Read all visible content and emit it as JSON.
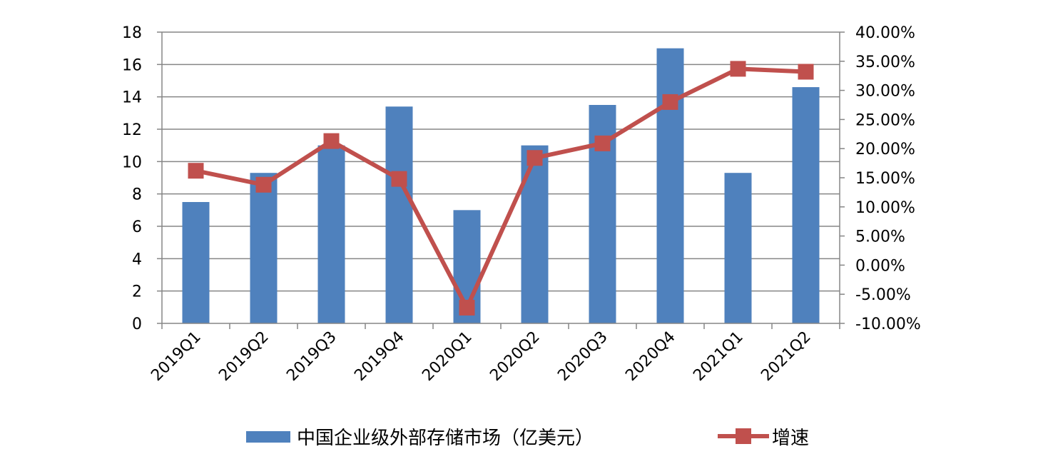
{
  "chart_data": {
    "type": "bar",
    "categories": [
      "2019Q1",
      "2019Q2",
      "2019Q3",
      "2019Q4",
      "2020Q1",
      "2020Q2",
      "2020Q3",
      "2020Q4",
      "2021Q1",
      "2021Q2"
    ],
    "series": [
      {
        "name": "中国企业级外部存储市场（亿美元）",
        "type": "bar",
        "axis": "left",
        "color": "#4F81BD",
        "values": [
          7.5,
          9.3,
          11.0,
          13.4,
          7.0,
          11.0,
          13.5,
          17.0,
          9.3,
          14.6
        ]
      },
      {
        "name": "增速",
        "type": "line",
        "axis": "right",
        "color": "#C0504D",
        "marker": "square",
        "values": [
          16.2,
          13.8,
          21.3,
          14.8,
          -7.3,
          18.4,
          20.9,
          28.0,
          33.7,
          33.2
        ]
      }
    ],
    "y_left": {
      "ylim": [
        0,
        18
      ],
      "ticks": [
        "0",
        "2",
        "4",
        "6",
        "8",
        "10",
        "12",
        "14",
        "16",
        "18"
      ]
    },
    "y_right": {
      "ylim": [
        -10,
        40
      ],
      "ticks": [
        "-10.00%",
        "-5.00%",
        "0.00%",
        "5.00%",
        "10.00%",
        "15.00%",
        "20.00%",
        "25.00%",
        "30.00%",
        "35.00%",
        "40.00%"
      ]
    },
    "grid": true,
    "legend_position": "bottom"
  }
}
